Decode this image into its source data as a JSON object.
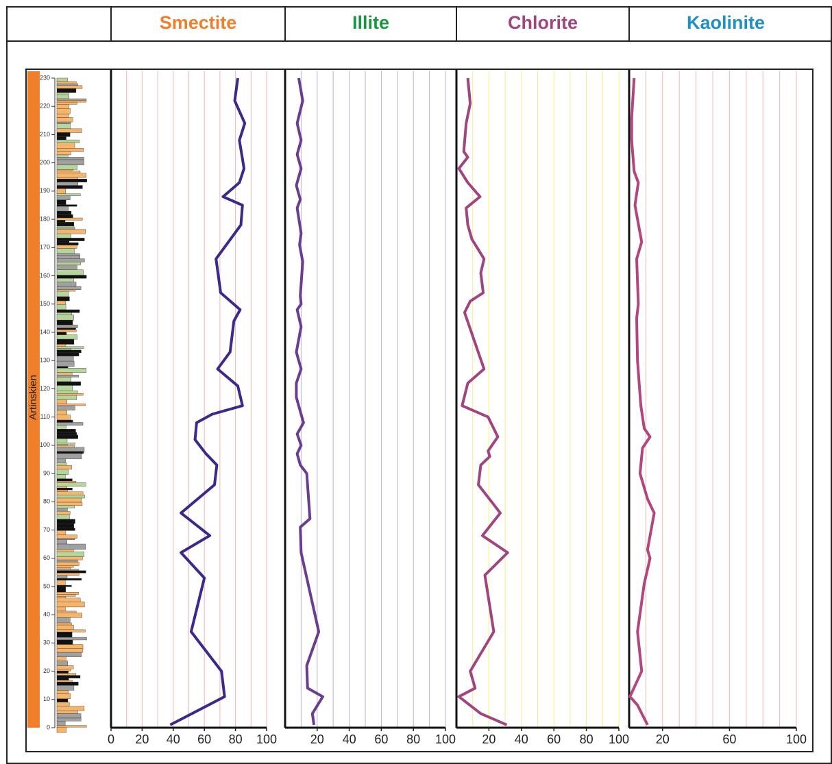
{
  "chart_data": [
    {
      "type": "line",
      "title": "Smectite",
      "title_color": "#f07f2b",
      "color": "#3b2a8a",
      "grid_color": "#f4b6b0",
      "xlim": [
        0,
        100
      ],
      "xticks": [
        0,
        20,
        40,
        60,
        80,
        100
      ],
      "xgrid": [
        10,
        20,
        30,
        40,
        50,
        60,
        70,
        80,
        90,
        100
      ],
      "depths": [
        230,
        222,
        214,
        208,
        198,
        193,
        188,
        185,
        178,
        166,
        154,
        148,
        144,
        133,
        127,
        121,
        114,
        111,
        108,
        102,
        97,
        93,
        86,
        76,
        68,
        62,
        53,
        34,
        20,
        11,
        1
      ],
      "values": [
        81.5,
        79.5,
        86,
        82.5,
        85.5,
        82.5,
        72,
        84.5,
        83.5,
        67.5,
        70.5,
        83,
        79,
        76.5,
        68.5,
        81.5,
        84.5,
        65,
        55,
        54,
        61,
        68,
        66.5,
        45,
        63.5,
        45,
        60,
        51.5,
        71,
        73,
        38
      ]
    },
    {
      "type": "line",
      "title": "Illite",
      "title_color": "#1a9641",
      "color": "#6b3d8f",
      "grid_color": "#b4b4d8",
      "xlim": [
        0,
        100
      ],
      "xticks": [
        20,
        40,
        60,
        80,
        100
      ],
      "xgrid": [
        10,
        20,
        30,
        40,
        50,
        60,
        70,
        80,
        90,
        100
      ],
      "depths": [
        230,
        222,
        214,
        208,
        203,
        198,
        192,
        187,
        184,
        175,
        171,
        165,
        153,
        150,
        148,
        142,
        133,
        127,
        122,
        117,
        112,
        108,
        104,
        100,
        97,
        93,
        90,
        74,
        71,
        62,
        34,
        22,
        14,
        11,
        5,
        1
      ],
      "values": [
        8.5,
        11,
        7.5,
        10,
        7.5,
        10,
        7,
        9.5,
        7.5,
        10,
        9,
        11,
        9.5,
        10,
        7.5,
        10,
        7,
        10,
        7,
        7,
        9.5,
        11.5,
        7.5,
        10,
        7.5,
        9.5,
        13.5,
        15.5,
        9.5,
        10,
        21,
        13.5,
        14,
        23.5,
        17,
        18
      ]
    },
    {
      "type": "line",
      "title": "Chlorite",
      "title_color": "#a0457f",
      "color": "#a0457f",
      "grid_color": "#f3ec8a",
      "xlim": [
        0,
        100
      ],
      "xticks": [
        20,
        40,
        60,
        80,
        100
      ],
      "xgrid": [
        10,
        20,
        30,
        40,
        50,
        60,
        70,
        80,
        90,
        100
      ],
      "depths": [
        230,
        221,
        214,
        204,
        202,
        198,
        193,
        188,
        184,
        178,
        173,
        166,
        161,
        154,
        151,
        147,
        127,
        122,
        114,
        110,
        103,
        98,
        96,
        93,
        86,
        76,
        68,
        62,
        54,
        34,
        20,
        14,
        11,
        5,
        1
      ],
      "values": [
        7,
        8.5,
        6,
        4.5,
        7,
        1.5,
        7,
        14.5,
        6,
        7,
        9.5,
        17,
        15,
        16.5,
        8.5,
        5,
        17,
        7,
        3.5,
        19.5,
        25.5,
        19.5,
        20.5,
        15,
        13.5,
        27,
        16,
        31.5,
        17.5,
        23,
        8.5,
        11.5,
        1.5,
        15,
        31
      ]
    },
    {
      "type": "line",
      "title": "Kaolinite",
      "title_color": "#1f8fc4",
      "color": "#b2467f",
      "grid_color": "#f4b6b0",
      "xlim": [
        0,
        100
      ],
      "xticks": [
        20,
        60,
        100
      ],
      "xgrid": [
        10,
        20,
        30,
        40,
        50,
        60,
        70,
        80,
        90,
        100
      ],
      "depths": [
        230,
        216,
        208,
        197,
        193,
        185,
        172,
        166,
        150,
        145,
        130,
        122,
        114,
        106,
        103,
        99,
        90,
        81,
        76,
        63,
        60,
        51,
        34,
        20,
        11,
        8,
        1
      ],
      "values": [
        3,
        1.5,
        1.5,
        3,
        5.5,
        3.5,
        7.5,
        4.5,
        5.5,
        4.5,
        5,
        6,
        7,
        9,
        12.5,
        8,
        6.5,
        11,
        15,
        11,
        12.5,
        9,
        5,
        7.5,
        0.5,
        5,
        11
      ]
    }
  ],
  "depth_axis": {
    "ylim": [
      0,
      230
    ],
    "yticks": [
      0,
      10,
      20,
      30,
      40,
      50,
      60,
      70,
      80,
      90,
      100,
      110,
      120,
      130,
      140,
      150,
      160,
      170,
      180,
      190,
      200,
      210,
      220,
      230
    ],
    "stage": "Artinskien",
    "stage_color": "#f07f2b"
  }
}
